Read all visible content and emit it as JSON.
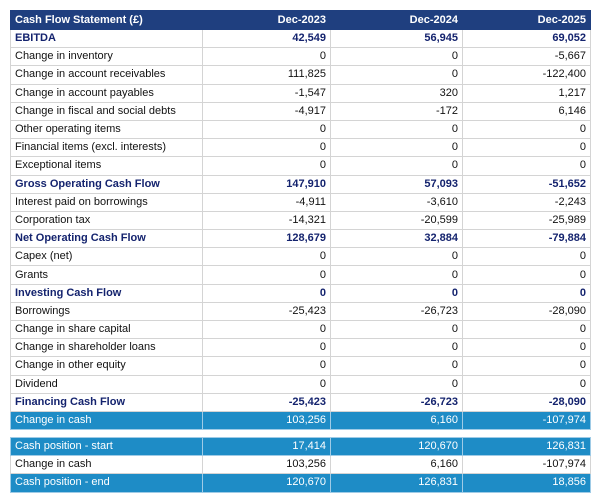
{
  "table": {
    "header": [
      "Cash Flow Statement (£)",
      "Dec-2023",
      "Dec-2024",
      "Dec-2025"
    ],
    "rows": [
      [
        "EBITDA",
        "42,549",
        "56,945",
        "69,052"
      ],
      [
        "Change in inventory",
        "0",
        "0",
        "-5,667"
      ],
      [
        "Change in account receivables",
        "111,825",
        "0",
        "-122,400"
      ],
      [
        "Change in account payables",
        "-1,547",
        "320",
        "1,217"
      ],
      [
        "Change in fiscal and social debts",
        "-4,917",
        "-172",
        "6,146"
      ],
      [
        "Other operating items",
        "0",
        "0",
        "0"
      ],
      [
        "Financial items (excl. interests)",
        "0",
        "0",
        "0"
      ],
      [
        "Exceptional items",
        "0",
        "0",
        "0"
      ],
      [
        "Gross Operating Cash Flow",
        "147,910",
        "57,093",
        "-51,652"
      ],
      [
        "Interest paid on borrowings",
        "-4,911",
        "-3,610",
        "-2,243"
      ],
      [
        "Corporation tax",
        "-14,321",
        "-20,599",
        "-25,989"
      ],
      [
        "Net Operating Cash Flow",
        "128,679",
        "32,884",
        "-79,884"
      ],
      [
        "Capex (net)",
        "0",
        "0",
        "0"
      ],
      [
        "Grants",
        "0",
        "0",
        "0"
      ],
      [
        "Investing Cash Flow",
        "0",
        "0",
        "0"
      ],
      [
        "Borrowings",
        "-25,423",
        "-26,723",
        "-28,090"
      ],
      [
        "Change in share capital",
        "0",
        "0",
        "0"
      ],
      [
        "Change in shareholder loans",
        "0",
        "0",
        "0"
      ],
      [
        "Change in other equity",
        "0",
        "0",
        "0"
      ],
      [
        "Dividend",
        "0",
        "0",
        "0"
      ],
      [
        "Financing Cash Flow",
        "-25,423",
        "-26,723",
        "-28,090"
      ],
      [
        "Change in cash",
        "103,256",
        "6,160",
        "-107,974"
      ]
    ]
  },
  "summary": {
    "rows": [
      [
        "Cash position - start",
        "17,414",
        "120,670",
        "126,831"
      ],
      [
        "Change in cash",
        "103,256",
        "6,160",
        "-107,974"
      ],
      [
        "Cash position - end",
        "120,670",
        "126,831",
        "18,856"
      ]
    ]
  }
}
